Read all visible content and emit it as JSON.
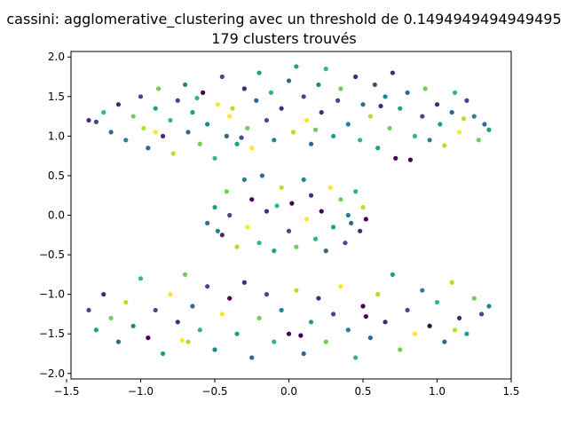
{
  "chart_data": {
    "type": "scatter",
    "title": "cassini: agglomerative_clustering avec un threshold de 0.1494949494949495",
    "subtitle": "179 clusters trouvés",
    "xlabel": "",
    "ylabel": "",
    "xlim": [
      -1.47,
      1.5
    ],
    "ylim": [
      -2.07,
      2.07
    ],
    "xticks": [
      -1.5,
      -1.0,
      -0.5,
      0.0,
      0.5,
      1.0,
      1.5
    ],
    "xtick_labels": [
      "−1.5",
      "−1.0",
      "−0.5",
      "0.0",
      "0.5",
      "1.0",
      "1.5"
    ],
    "yticks": [
      -2.0,
      -1.5,
      -1.0,
      -0.5,
      0.0,
      0.5,
      1.0,
      1.5,
      2.0
    ],
    "ytick_labels": [
      "−2.0",
      "−1.5",
      "−1.0",
      "−0.5",
      "0.0",
      "0.5",
      "1.0",
      "1.5",
      "2.0"
    ],
    "grid": false,
    "legend": "none",
    "colormap": "viridis",
    "colors": [
      "#440154",
      "#482878",
      "#3e4a89",
      "#31688e",
      "#26828e",
      "#1f9e89",
      "#35b779",
      "#6ece58",
      "#b5de2b",
      "#fde725"
    ],
    "n_clusters": 179,
    "points": [
      [
        -1.3,
        1.18,
        2
      ],
      [
        -1.25,
        1.3,
        6
      ],
      [
        -1.2,
        1.05,
        3
      ],
      [
        -1.15,
        1.4,
        1
      ],
      [
        -1.1,
        0.95,
        4
      ],
      [
        -1.05,
        1.25,
        7
      ],
      [
        -1.0,
        1.5,
        2
      ],
      [
        -0.98,
        1.1,
        8
      ],
      [
        -0.95,
        0.85,
        3
      ],
      [
        -0.9,
        1.35,
        5
      ],
      [
        -0.88,
        1.6,
        7
      ],
      [
        -0.85,
        1.0,
        1
      ],
      [
        -0.8,
        1.2,
        6
      ],
      [
        -0.78,
        0.78,
        8
      ],
      [
        -0.75,
        1.45,
        2
      ],
      [
        -0.7,
        1.65,
        4
      ],
      [
        -0.68,
        1.05,
        3
      ],
      [
        -0.65,
        1.3,
        5
      ],
      [
        -0.6,
        0.9,
        7
      ],
      [
        -0.58,
        1.55,
        0
      ],
      [
        -0.55,
        1.15,
        4
      ],
      [
        -0.5,
        0.72,
        6
      ],
      [
        -0.48,
        1.4,
        9
      ],
      [
        -0.45,
        1.75,
        2
      ],
      [
        -0.42,
        1.0,
        3
      ],
      [
        -0.4,
        1.25,
        9
      ],
      [
        -0.38,
        1.35,
        8
      ],
      [
        -0.35,
        0.9,
        5
      ],
      [
        -0.3,
        1.6,
        1
      ],
      [
        -0.28,
        1.1,
        7
      ],
      [
        -0.25,
        0.85,
        9
      ],
      [
        -0.22,
        1.45,
        3
      ],
      [
        -0.2,
        1.8,
        5
      ],
      [
        -0.15,
        1.2,
        2
      ],
      [
        -0.12,
        1.55,
        6
      ],
      [
        -0.1,
        0.95,
        4
      ],
      [
        -0.05,
        1.35,
        1
      ],
      [
        0.0,
        1.7,
        3
      ],
      [
        0.03,
        1.05,
        8
      ],
      [
        0.05,
        1.88,
        5
      ],
      [
        0.1,
        1.5,
        2
      ],
      [
        0.12,
        1.2,
        9
      ],
      [
        0.15,
        0.9,
        3
      ],
      [
        0.2,
        1.65,
        4
      ],
      [
        0.22,
        1.3,
        1
      ],
      [
        0.25,
        1.85,
        6
      ],
      [
        0.3,
        1.0,
        5
      ],
      [
        0.33,
        1.45,
        2
      ],
      [
        0.35,
        1.6,
        7
      ],
      [
        0.4,
        1.15,
        4
      ],
      [
        0.45,
        1.75,
        1
      ],
      [
        0.48,
        0.95,
        6
      ],
      [
        0.5,
        1.4,
        3
      ],
      [
        0.55,
        1.25,
        8
      ],
      [
        0.58,
        1.65,
        2
      ],
      [
        0.6,
        0.85,
        5
      ],
      [
        0.65,
        1.5,
        4
      ],
      [
        0.68,
        1.1,
        7
      ],
      [
        0.7,
        1.8,
        1
      ],
      [
        0.72,
        0.72,
        0
      ],
      [
        0.75,
        1.35,
        5
      ],
      [
        0.8,
        1.55,
        3
      ],
      [
        0.82,
        0.7,
        0
      ],
      [
        0.85,
        1.0,
        6
      ],
      [
        0.9,
        1.25,
        2
      ],
      [
        0.92,
        1.6,
        7
      ],
      [
        0.95,
        0.95,
        4
      ],
      [
        1.0,
        1.4,
        1
      ],
      [
        1.02,
        1.15,
        5
      ],
      [
        1.05,
        0.88,
        8
      ],
      [
        1.1,
        1.3,
        3
      ],
      [
        1.12,
        1.55,
        6
      ],
      [
        1.15,
        1.05,
        9
      ],
      [
        1.2,
        1.45,
        2
      ],
      [
        1.25,
        1.25,
        4
      ],
      [
        1.28,
        0.95,
        7
      ],
      [
        1.32,
        1.15,
        3
      ],
      [
        1.35,
        1.08,
        5
      ],
      [
        -1.35,
        1.2,
        1
      ],
      [
        -0.9,
        1.05,
        9
      ],
      [
        -0.62,
        1.48,
        6
      ],
      [
        -0.32,
        0.98,
        2
      ],
      [
        0.18,
        1.08,
        7
      ],
      [
        0.62,
        1.38,
        1
      ],
      [
        1.18,
        1.22,
        8
      ],
      [
        -0.55,
        -0.1,
        3
      ],
      [
        -0.5,
        0.1,
        5
      ],
      [
        -0.45,
        -0.25,
        1
      ],
      [
        -0.42,
        0.3,
        7
      ],
      [
        -0.4,
        0.0,
        2
      ],
      [
        -0.35,
        -0.4,
        8
      ],
      [
        -0.3,
        0.45,
        4
      ],
      [
        -0.28,
        -0.15,
        9
      ],
      [
        -0.25,
        0.2,
        0
      ],
      [
        -0.2,
        -0.35,
        6
      ],
      [
        -0.18,
        0.5,
        3
      ],
      [
        -0.15,
        0.05,
        1
      ],
      [
        -0.1,
        -0.45,
        5
      ],
      [
        -0.05,
        0.35,
        8
      ],
      [
        0.0,
        -0.2,
        2
      ],
      [
        0.02,
        0.15,
        0
      ],
      [
        0.05,
        -0.4,
        7
      ],
      [
        0.1,
        0.45,
        4
      ],
      [
        0.12,
        -0.05,
        9
      ],
      [
        0.15,
        0.25,
        1
      ],
      [
        0.18,
        -0.3,
        6
      ],
      [
        0.22,
        0.05,
        0
      ],
      [
        0.25,
        -0.45,
        3
      ],
      [
        0.28,
        0.35,
        9
      ],
      [
        0.3,
        -0.15,
        5
      ],
      [
        0.35,
        0.2,
        7
      ],
      [
        0.38,
        -0.35,
        2
      ],
      [
        0.4,
        0.0,
        4
      ],
      [
        0.45,
        0.3,
        6
      ],
      [
        0.48,
        -0.2,
        1
      ],
      [
        0.5,
        0.1,
        8
      ],
      [
        0.52,
        -0.05,
        0
      ],
      [
        -0.48,
        -0.2,
        4
      ],
      [
        0.42,
        -0.1,
        3
      ],
      [
        -0.08,
        0.12,
        6
      ],
      [
        -1.35,
        -1.2,
        2
      ],
      [
        -1.3,
        -1.45,
        5
      ],
      [
        -1.25,
        -1.0,
        1
      ],
      [
        -1.2,
        -1.3,
        7
      ],
      [
        -1.15,
        -1.6,
        3
      ],
      [
        -1.1,
        -1.1,
        8
      ],
      [
        -1.05,
        -1.4,
        4
      ],
      [
        -1.0,
        -0.8,
        6
      ],
      [
        -0.95,
        -1.55,
        0
      ],
      [
        -0.9,
        -1.2,
        2
      ],
      [
        -0.85,
        -1.75,
        5
      ],
      [
        -0.8,
        -1.0,
        9
      ],
      [
        -0.75,
        -1.35,
        1
      ],
      [
        -0.7,
        -0.75,
        7
      ],
      [
        -0.68,
        -1.6,
        8
      ],
      [
        -0.65,
        -1.15,
        3
      ],
      [
        -0.6,
        -1.45,
        6
      ],
      [
        -0.55,
        -0.9,
        2
      ],
      [
        -0.5,
        -1.7,
        4
      ],
      [
        -0.45,
        -1.25,
        9
      ],
      [
        -0.4,
        -1.05,
        0
      ],
      [
        -0.35,
        -1.5,
        5
      ],
      [
        -0.3,
        -0.85,
        1
      ],
      [
        -0.25,
        -1.8,
        3
      ],
      [
        -0.2,
        -1.3,
        7
      ],
      [
        -0.15,
        -1.0,
        2
      ],
      [
        -0.1,
        -1.6,
        6
      ],
      [
        -0.05,
        -1.2,
        4
      ],
      [
        0.0,
        -1.5,
        0
      ],
      [
        0.05,
        -0.95,
        8
      ],
      [
        0.1,
        -1.75,
        3
      ],
      [
        0.15,
        -1.35,
        5
      ],
      [
        0.2,
        -1.05,
        1
      ],
      [
        0.25,
        -1.6,
        7
      ],
      [
        0.3,
        -1.25,
        2
      ],
      [
        0.35,
        -0.9,
        9
      ],
      [
        0.4,
        -1.45,
        4
      ],
      [
        0.45,
        -1.8,
        6
      ],
      [
        0.5,
        -1.15,
        0
      ],
      [
        0.55,
        -1.55,
        3
      ],
      [
        0.6,
        -1.0,
        8
      ],
      [
        0.65,
        -1.35,
        1
      ],
      [
        0.7,
        -0.75,
        5
      ],
      [
        0.75,
        -1.7,
        7
      ],
      [
        0.8,
        -1.2,
        2
      ],
      [
        0.85,
        -1.5,
        9
      ],
      [
        0.9,
        -0.95,
        4
      ],
      [
        0.95,
        -1.4,
        0
      ],
      [
        1.0,
        -1.1,
        6
      ],
      [
        1.05,
        -1.6,
        3
      ],
      [
        1.1,
        -0.85,
        8
      ],
      [
        1.15,
        -1.3,
        1
      ],
      [
        1.2,
        -1.5,
        5
      ],
      [
        1.25,
        -1.05,
        7
      ],
      [
        1.3,
        -1.25,
        2
      ],
      [
        1.35,
        -1.15,
        4
      ],
      [
        -0.72,
        -1.58,
        9
      ],
      [
        0.08,
        -1.52,
        0
      ],
      [
        0.52,
        -1.28,
        0
      ],
      [
        1.12,
        -1.45,
        8
      ]
    ]
  }
}
